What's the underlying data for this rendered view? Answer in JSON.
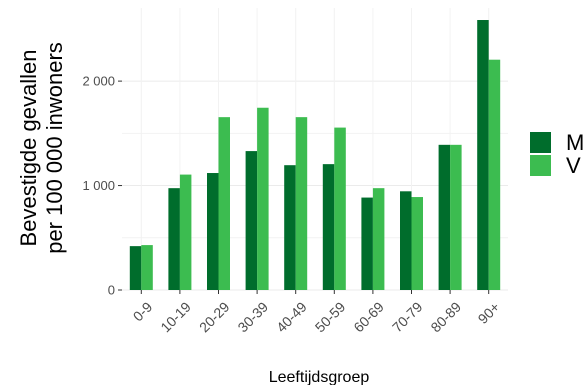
{
  "chart_data": {
    "type": "bar",
    "title": "",
    "xlabel": "Leeftijdsgroep",
    "ylabel_lines": [
      "Bevestigde gevallen",
      "per 100 000 inwoners"
    ],
    "categories": [
      "0-9",
      "10-19",
      "20-29",
      "30-39",
      "40-49",
      "50-59",
      "60-69",
      "70-79",
      "80-89",
      "90+"
    ],
    "series": [
      {
        "name": "M",
        "color": "#006d2c",
        "values": [
          420,
          975,
          1120,
          1330,
          1195,
          1205,
          885,
          945,
          1390,
          2585
        ]
      },
      {
        "name": "V",
        "color": "#3cbc50",
        "values": [
          430,
          1105,
          1655,
          1745,
          1655,
          1555,
          975,
          890,
          1390,
          2205
        ]
      }
    ],
    "ylim": [
      0,
      2700
    ],
    "yticks": [
      0,
      1000,
      2000
    ],
    "ytick_labels": [
      "0",
      "1 000",
      "2 000"
    ],
    "grid": true,
    "legend_position": "right"
  }
}
